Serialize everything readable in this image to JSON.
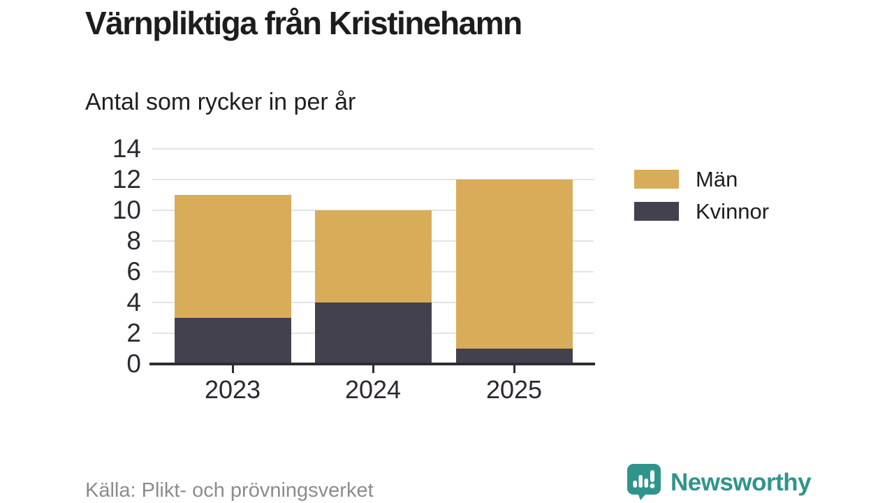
{
  "title": "Värnpliktiga från Kristinehamn",
  "subtitle": "Antal som rycker in per år",
  "source": "Källa: Plikt- och prövningsverket",
  "brand": {
    "name": "Newsworthy",
    "icon": "bar-chart-speech-bubble-icon",
    "color": "#2f948c"
  },
  "colors": {
    "men": "#d9ac59",
    "women": "#44414f",
    "grid": "#e3e3e3",
    "axis": "#2e2b33",
    "tick_text": "#2b2830",
    "source_text": "#8c8c8c"
  },
  "chart_data": {
    "type": "bar",
    "stacked": true,
    "title": "Värnpliktiga från Kristinehamn",
    "subtitle": "Antal som rycker in per år",
    "categories": [
      "2023",
      "2024",
      "2025"
    ],
    "series": [
      {
        "name": "Män",
        "color": "#d9ac59",
        "values": [
          8,
          6,
          11
        ]
      },
      {
        "name": "Kvinnor",
        "color": "#44414f",
        "values": [
          3,
          4,
          1
        ]
      }
    ],
    "stack_order_bottom_to_top": [
      "Kvinnor",
      "Män"
    ],
    "totals": [
      11,
      10,
      12
    ],
    "xlabel": "",
    "ylabel": "",
    "ylim": [
      0,
      14
    ],
    "yticks": [
      0,
      2,
      4,
      6,
      8,
      10,
      12,
      14
    ],
    "grid": "horizontal",
    "legend_position": "right"
  }
}
